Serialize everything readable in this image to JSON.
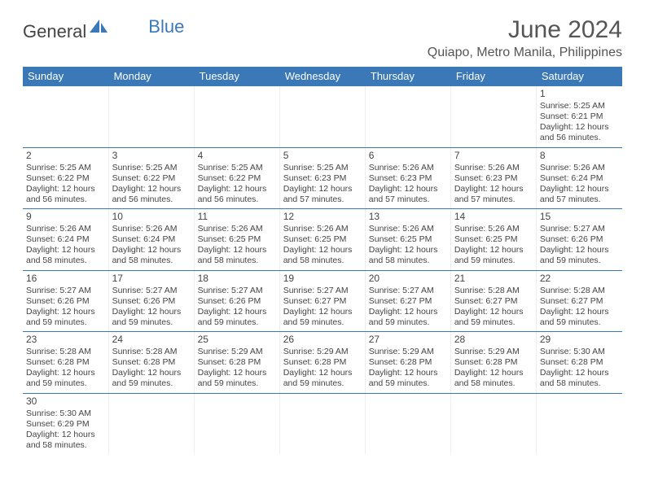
{
  "logo": {
    "part1": "General",
    "part2": "Blue"
  },
  "title": "June 2024",
  "location": "Quiapo, Metro Manila, Philippines",
  "colors": {
    "header_bg": "#3a78b8",
    "header_text": "#ffffff",
    "border": "#3a78b8",
    "text": "#444444",
    "background": "#ffffff"
  },
  "typography": {
    "title_fontsize": 30,
    "location_fontsize": 16,
    "day_header_fontsize": 13,
    "cell_fontsize": 10.5,
    "daynum_fontsize": 12
  },
  "day_headers": [
    "Sunday",
    "Monday",
    "Tuesday",
    "Wednesday",
    "Thursday",
    "Friday",
    "Saturday"
  ],
  "labels": {
    "sunrise": "Sunrise:",
    "sunset": "Sunset:",
    "daylight": "Daylight:"
  },
  "weeks": [
    [
      null,
      null,
      null,
      null,
      null,
      null,
      {
        "day": "1",
        "sunrise": "5:25 AM",
        "sunset": "6:21 PM",
        "daylight": "12 hours and 56 minutes."
      }
    ],
    [
      {
        "day": "2",
        "sunrise": "5:25 AM",
        "sunset": "6:22 PM",
        "daylight": "12 hours and 56 minutes."
      },
      {
        "day": "3",
        "sunrise": "5:25 AM",
        "sunset": "6:22 PM",
        "daylight": "12 hours and 56 minutes."
      },
      {
        "day": "4",
        "sunrise": "5:25 AM",
        "sunset": "6:22 PM",
        "daylight": "12 hours and 56 minutes."
      },
      {
        "day": "5",
        "sunrise": "5:25 AM",
        "sunset": "6:23 PM",
        "daylight": "12 hours and 57 minutes."
      },
      {
        "day": "6",
        "sunrise": "5:26 AM",
        "sunset": "6:23 PM",
        "daylight": "12 hours and 57 minutes."
      },
      {
        "day": "7",
        "sunrise": "5:26 AM",
        "sunset": "6:23 PM",
        "daylight": "12 hours and 57 minutes."
      },
      {
        "day": "8",
        "sunrise": "5:26 AM",
        "sunset": "6:24 PM",
        "daylight": "12 hours and 57 minutes."
      }
    ],
    [
      {
        "day": "9",
        "sunrise": "5:26 AM",
        "sunset": "6:24 PM",
        "daylight": "12 hours and 58 minutes."
      },
      {
        "day": "10",
        "sunrise": "5:26 AM",
        "sunset": "6:24 PM",
        "daylight": "12 hours and 58 minutes."
      },
      {
        "day": "11",
        "sunrise": "5:26 AM",
        "sunset": "6:25 PM",
        "daylight": "12 hours and 58 minutes."
      },
      {
        "day": "12",
        "sunrise": "5:26 AM",
        "sunset": "6:25 PM",
        "daylight": "12 hours and 58 minutes."
      },
      {
        "day": "13",
        "sunrise": "5:26 AM",
        "sunset": "6:25 PM",
        "daylight": "12 hours and 58 minutes."
      },
      {
        "day": "14",
        "sunrise": "5:26 AM",
        "sunset": "6:25 PM",
        "daylight": "12 hours and 59 minutes."
      },
      {
        "day": "15",
        "sunrise": "5:27 AM",
        "sunset": "6:26 PM",
        "daylight": "12 hours and 59 minutes."
      }
    ],
    [
      {
        "day": "16",
        "sunrise": "5:27 AM",
        "sunset": "6:26 PM",
        "daylight": "12 hours and 59 minutes."
      },
      {
        "day": "17",
        "sunrise": "5:27 AM",
        "sunset": "6:26 PM",
        "daylight": "12 hours and 59 minutes."
      },
      {
        "day": "18",
        "sunrise": "5:27 AM",
        "sunset": "6:26 PM",
        "daylight": "12 hours and 59 minutes."
      },
      {
        "day": "19",
        "sunrise": "5:27 AM",
        "sunset": "6:27 PM",
        "daylight": "12 hours and 59 minutes."
      },
      {
        "day": "20",
        "sunrise": "5:27 AM",
        "sunset": "6:27 PM",
        "daylight": "12 hours and 59 minutes."
      },
      {
        "day": "21",
        "sunrise": "5:28 AM",
        "sunset": "6:27 PM",
        "daylight": "12 hours and 59 minutes."
      },
      {
        "day": "22",
        "sunrise": "5:28 AM",
        "sunset": "6:27 PM",
        "daylight": "12 hours and 59 minutes."
      }
    ],
    [
      {
        "day": "23",
        "sunrise": "5:28 AM",
        "sunset": "6:28 PM",
        "daylight": "12 hours and 59 minutes."
      },
      {
        "day": "24",
        "sunrise": "5:28 AM",
        "sunset": "6:28 PM",
        "daylight": "12 hours and 59 minutes."
      },
      {
        "day": "25",
        "sunrise": "5:29 AM",
        "sunset": "6:28 PM",
        "daylight": "12 hours and 59 minutes."
      },
      {
        "day": "26",
        "sunrise": "5:29 AM",
        "sunset": "6:28 PM",
        "daylight": "12 hours and 59 minutes."
      },
      {
        "day": "27",
        "sunrise": "5:29 AM",
        "sunset": "6:28 PM",
        "daylight": "12 hours and 59 minutes."
      },
      {
        "day": "28",
        "sunrise": "5:29 AM",
        "sunset": "6:28 PM",
        "daylight": "12 hours and 58 minutes."
      },
      {
        "day": "29",
        "sunrise": "5:30 AM",
        "sunset": "6:28 PM",
        "daylight": "12 hours and 58 minutes."
      }
    ],
    [
      {
        "day": "30",
        "sunrise": "5:30 AM",
        "sunset": "6:29 PM",
        "daylight": "12 hours and 58 minutes."
      },
      null,
      null,
      null,
      null,
      null,
      null
    ]
  ]
}
